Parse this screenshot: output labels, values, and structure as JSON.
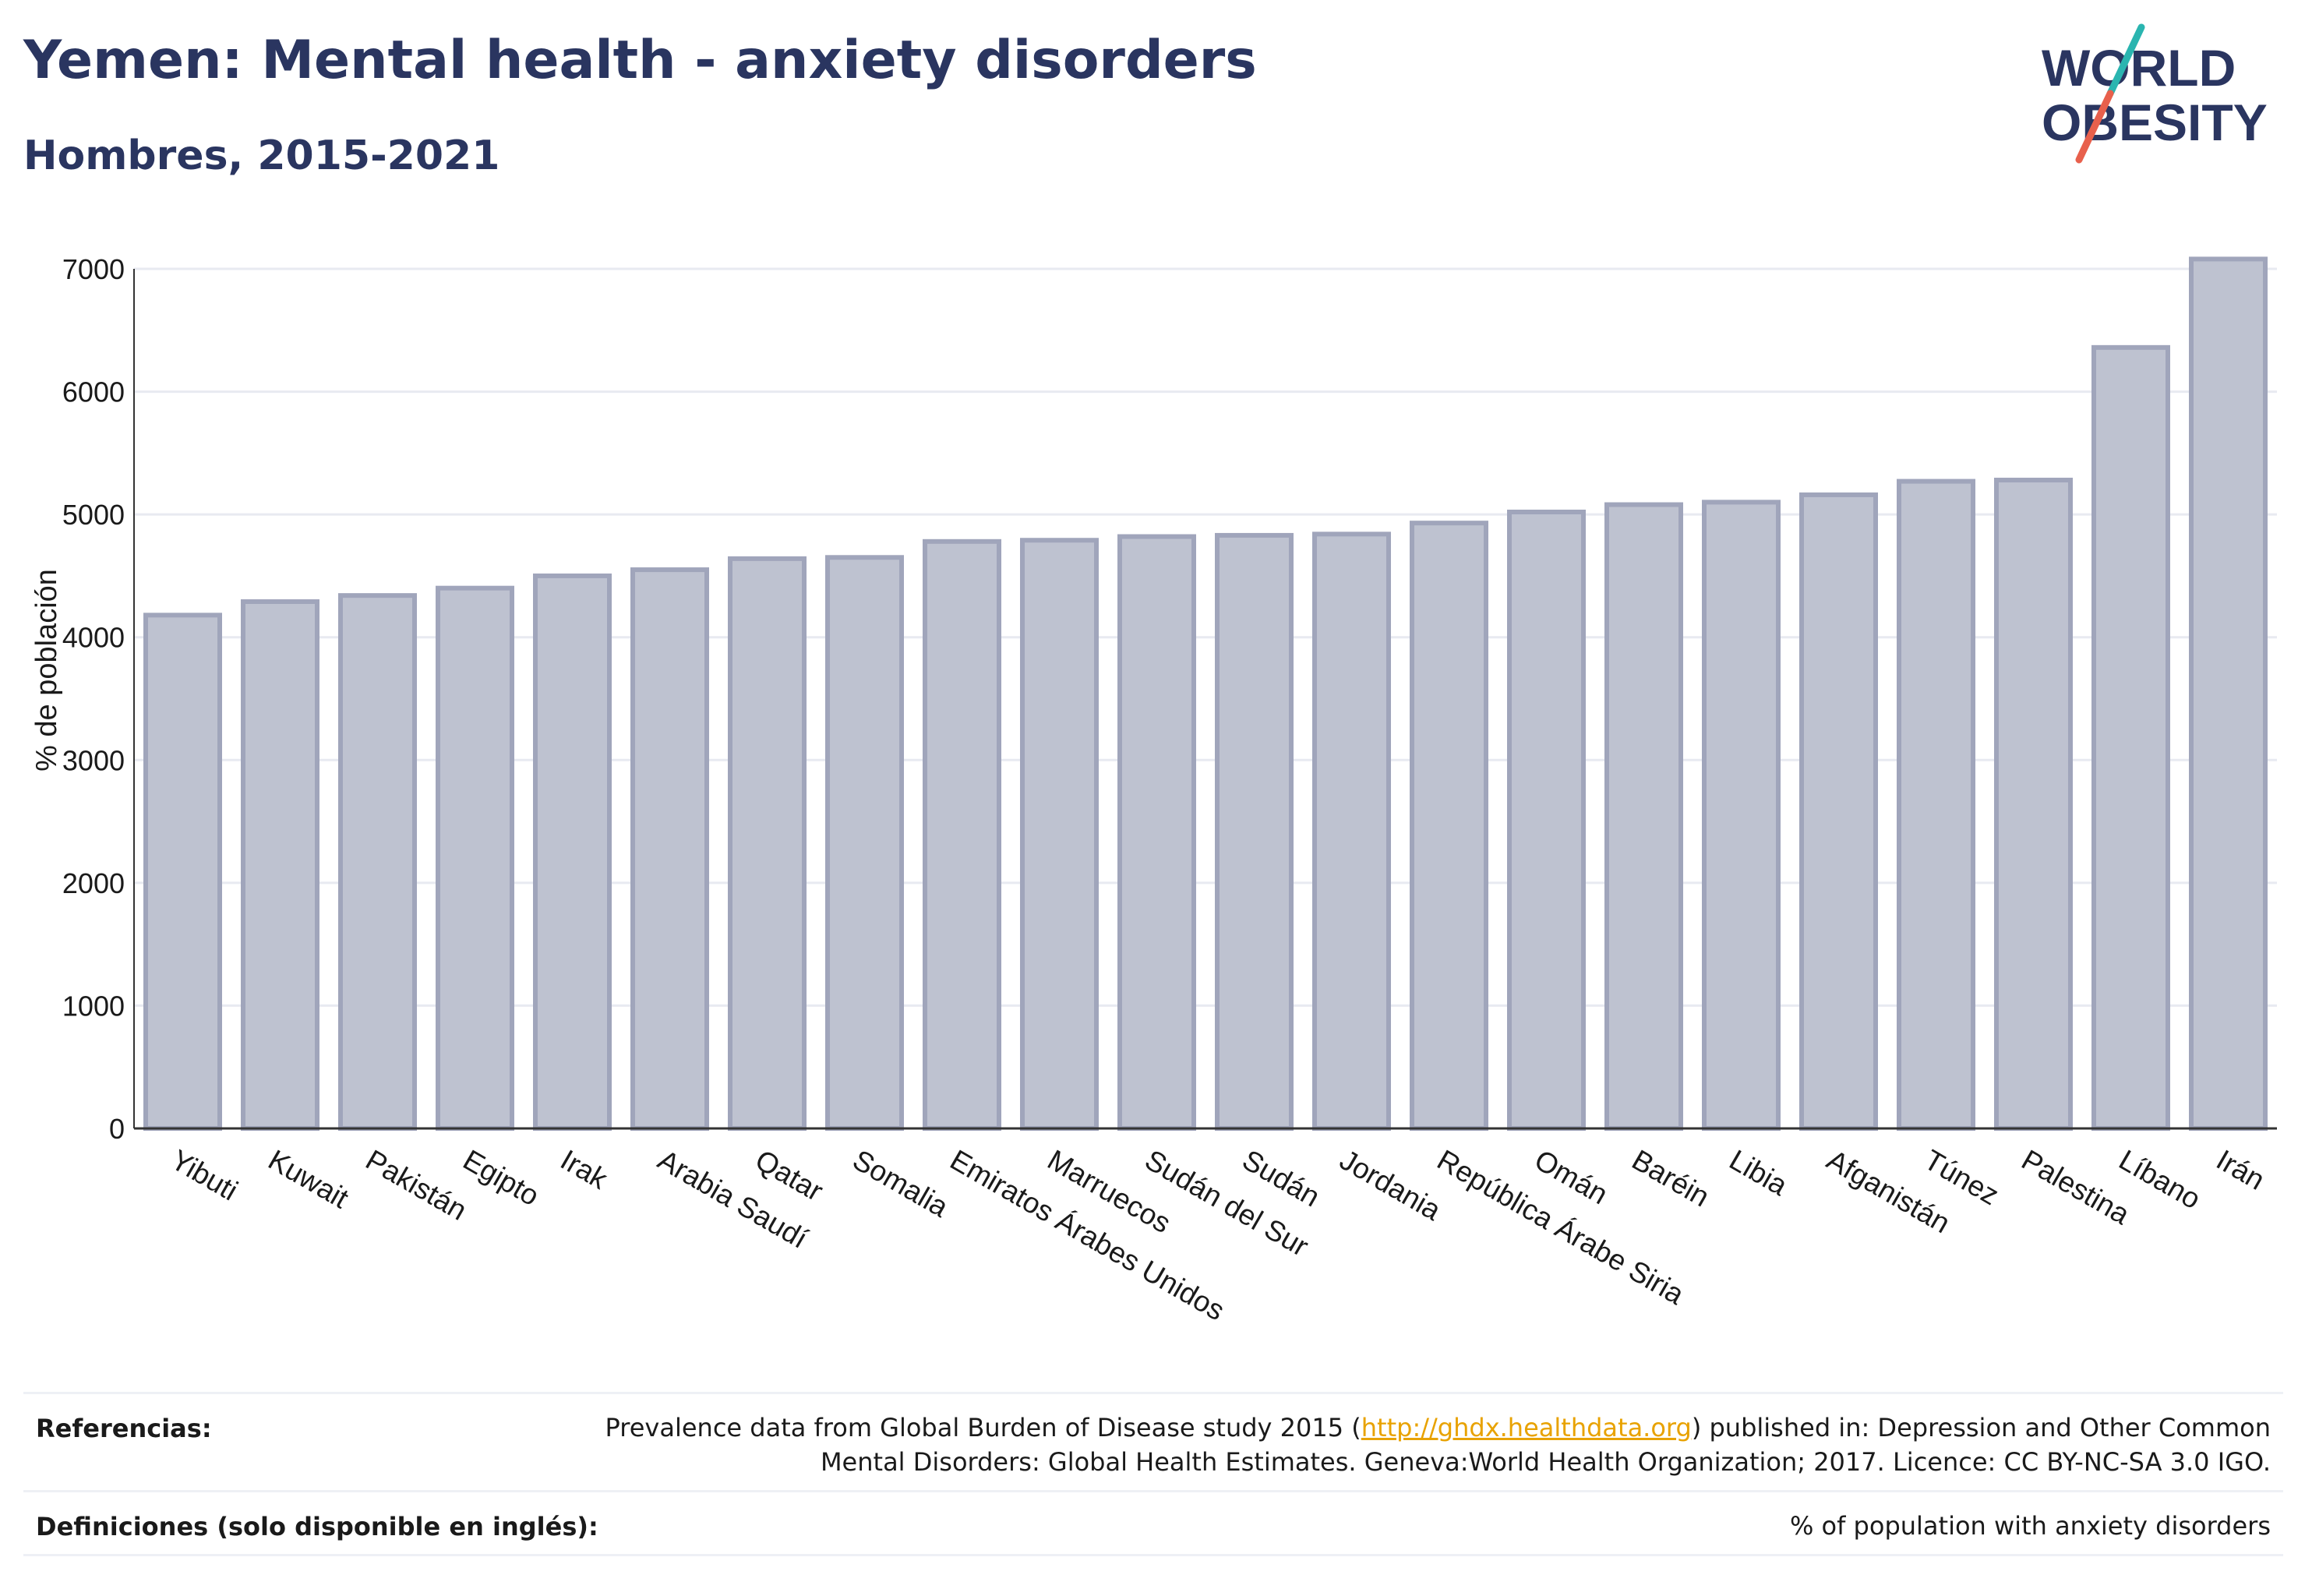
{
  "header": {
    "title": "Yemen: Mental health - anxiety disorders",
    "subtitle": "Hombres, 2015-2021"
  },
  "logo": {
    "line1": "WORLD",
    "line2": "OBESITY"
  },
  "colors": {
    "bar_fill": "#bec2d0",
    "bar_stroke": "#a0a5bb",
    "title": "#2a3560",
    "grid": "#e8eaf1",
    "link": "#e8a200",
    "logo_teal": "#2ab5b0",
    "logo_red": "#e8604c"
  },
  "chart_data": {
    "type": "bar",
    "title": "Yemen: Mental health - anxiety disorders",
    "subtitle": "Hombres, 2015-2021",
    "xlabel": "",
    "ylabel": "% de población",
    "ylim": [
      0,
      7000
    ],
    "yticks": [
      0,
      1000,
      2000,
      3000,
      4000,
      5000,
      6000,
      7000
    ],
    "grid": true,
    "categories": [
      "Yibuti",
      "Kuwait",
      "Pakistán",
      "Egipto",
      "Irak",
      "Arabia Saudí",
      "Qatar",
      "Somalia",
      "Emiratos Árabes Unidos",
      "Marruecos",
      "Sudán del Sur",
      "Sudán",
      "Jordania",
      "República Árabe Siria",
      "Omán",
      "Baréin",
      "Libia",
      "Afganistán",
      "Túnez",
      "Palestina",
      "Líbano",
      "Irán"
    ],
    "values": [
      4180,
      4290,
      4340,
      4400,
      4500,
      4550,
      4640,
      4650,
      4780,
      4790,
      4820,
      4830,
      4840,
      4930,
      5020,
      5080,
      5100,
      5160,
      5270,
      5280,
      6360,
      7080
    ]
  },
  "footer": {
    "references_label": "Referencias:",
    "references_pre": "Prevalence data from Global Burden of Disease study 2015 (",
    "references_link": "http://ghdx.healthdata.org",
    "references_post": ") published in: Depression and Other Common",
    "references_line2": "Mental Disorders: Global Health Estimates. Geneva:World Health Organization; 2017. Licence: CC BY-NC-SA 3.0 IGO.",
    "definitions_label": "Definiciones (solo disponible en inglés):",
    "definitions_text": "% of population with anxiety disorders"
  }
}
